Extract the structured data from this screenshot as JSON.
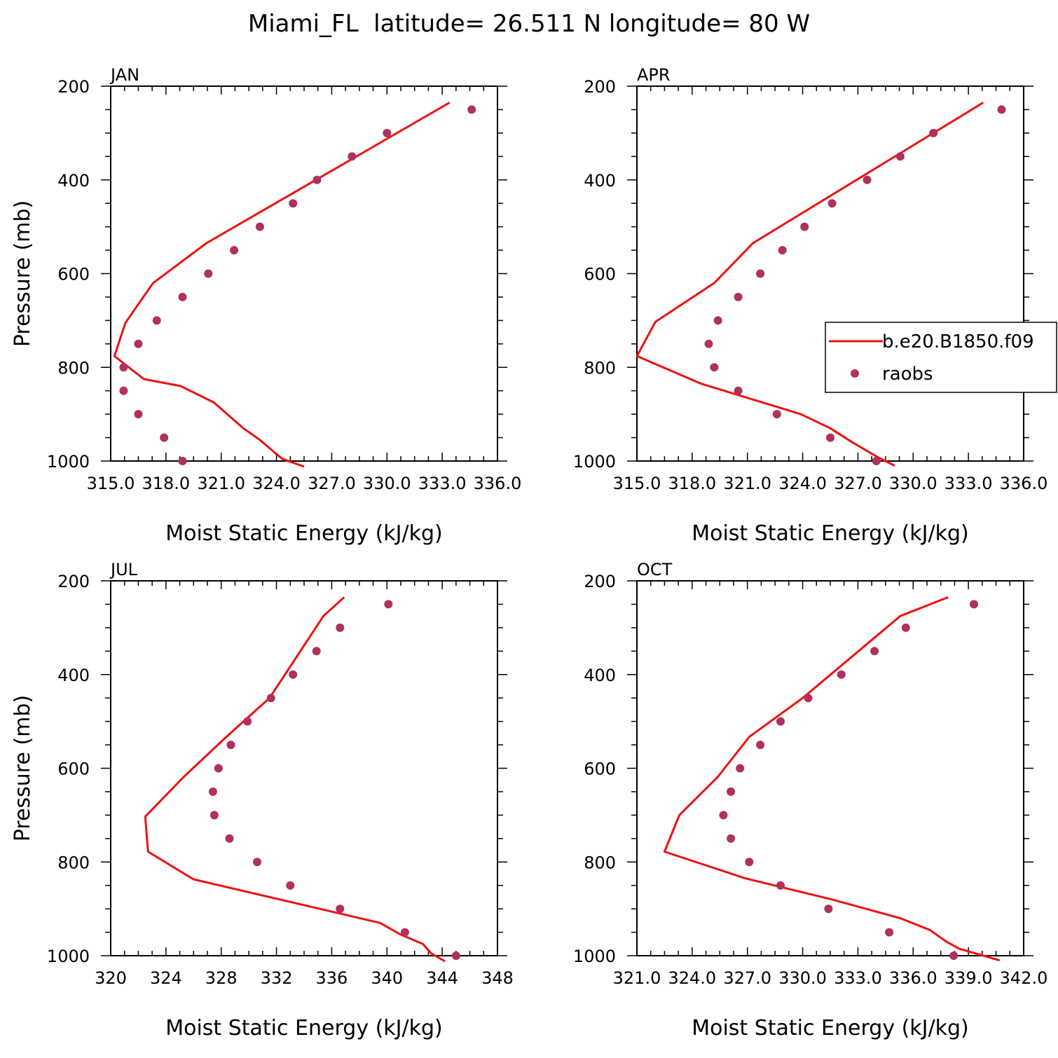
{
  "figure": {
    "title": "Miami_FL  latitude= 26.511 N longitude= 80 W"
  },
  "legend": {
    "model_label": "b.e20.B1850.f09",
    "obs_label": "raobs",
    "model_color": "#ee1111",
    "obs_color": "#b03060"
  },
  "chart_data": [
    {
      "type": "line",
      "panel": "JAN",
      "xlabel": "Moist Static Energy (kJ/kg)",
      "ylabel": "Pressure (mb)",
      "xlim": [
        315.0,
        336.0
      ],
      "ylim": [
        1000,
        200
      ],
      "xticks": [
        315.0,
        318.0,
        321.0,
        324.0,
        327.0,
        330.0,
        333.0,
        336.0
      ],
      "xtick_labels": [
        "315.0",
        "318.0",
        "321.0",
        "324.0",
        "327.0",
        "330.0",
        "333.0",
        "336.0"
      ],
      "yticks": [
        200,
        400,
        600,
        800,
        1000
      ],
      "ytick_labels": [
        "200",
        "400",
        "600",
        "800",
        "1000"
      ],
      "series": [
        {
          "name": "b.e20.B1850.f09",
          "style": "line",
          "x": [
            325.5,
            324.3,
            323.1,
            322.2,
            320.6,
            318.8,
            316.8,
            315.2,
            315.8,
            317.3,
            320.2,
            333.4
          ],
          "y": [
            1012,
            995,
            955,
            930,
            875,
            840,
            825,
            776,
            705,
            620,
            535,
            235
          ]
        },
        {
          "name": "raobs",
          "style": "markers",
          "x": [
            318.9,
            317.9,
            316.5,
            315.7,
            315.7,
            316.5,
            317.5,
            318.9,
            320.3,
            321.7,
            323.1,
            324.9,
            326.2,
            328.1,
            330.0,
            334.6
          ],
          "y": [
            1000,
            950,
            900,
            850,
            800,
            750,
            700,
            650,
            600,
            550,
            500,
            450,
            400,
            350,
            300,
            250
          ]
        }
      ]
    },
    {
      "type": "line",
      "panel": "APR",
      "xlabel": "Moist Static Energy (kJ/kg)",
      "ylabel": "Pressure (mb)",
      "xlim": [
        315.0,
        336.0
      ],
      "ylim": [
        1000,
        200
      ],
      "xticks": [
        315.0,
        318.0,
        321.0,
        324.0,
        327.0,
        330.0,
        333.0,
        336.0
      ],
      "xtick_labels": [
        "315.0",
        "318.0",
        "321.0",
        "324.0",
        "327.0",
        "330.0",
        "333.0",
        "336.0"
      ],
      "yticks": [
        200,
        400,
        600,
        800,
        1000
      ],
      "ytick_labels": [
        "200",
        "400",
        "600",
        "800",
        "1000"
      ],
      "series": [
        {
          "name": "b.e20.B1850.f09",
          "style": "line",
          "x": [
            329.0,
            328.0,
            326.7,
            325.5,
            323.9,
            318.5,
            315.0,
            316.0,
            319.2,
            321.3,
            333.8
          ],
          "y": [
            1010,
            990,
            960,
            930,
            900,
            835,
            776,
            703,
            620,
            535,
            235
          ]
        },
        {
          "name": "raobs",
          "style": "markers",
          "x": [
            328.0,
            325.5,
            322.6,
            320.5,
            319.2,
            318.9,
            319.4,
            320.5,
            321.7,
            322.9,
            324.1,
            325.6,
            327.5,
            329.3,
            331.1,
            334.8
          ],
          "y": [
            1000,
            950,
            900,
            850,
            800,
            750,
            700,
            650,
            600,
            550,
            500,
            450,
            400,
            350,
            300,
            250
          ]
        }
      ]
    },
    {
      "type": "line",
      "panel": "JUL",
      "xlabel": "Moist Static Energy (kJ/kg)",
      "ylabel": "Pressure (mb)",
      "xlim": [
        320,
        348
      ],
      "ylim": [
        1000,
        200
      ],
      "xticks": [
        320,
        324,
        328,
        332,
        336,
        340,
        344,
        348
      ],
      "xtick_labels": [
        "320",
        "324",
        "328",
        "332",
        "336",
        "340",
        "344",
        "348"
      ],
      "yticks": [
        200,
        400,
        600,
        800,
        1000
      ],
      "ytick_labels": [
        "200",
        "400",
        "600",
        "800",
        "1000"
      ],
      "series": [
        {
          "name": "b.e20.B1850.f09",
          "style": "line",
          "x": [
            344.2,
            343.2,
            342.6,
            341.0,
            339.5,
            326.0,
            322.7,
            322.5,
            325.3,
            328.3,
            331.5,
            335.4,
            336.9
          ],
          "y": [
            1012,
            995,
            975,
            955,
            930,
            837,
            778,
            703,
            618,
            535,
            450,
            275,
            235
          ]
        },
        {
          "name": "raobs",
          "style": "markers",
          "x": [
            345.0,
            341.3,
            336.6,
            333.0,
            330.6,
            328.6,
            327.5,
            327.4,
            327.8,
            328.7,
            329.9,
            331.6,
            333.2,
            334.9,
            336.6,
            340.1
          ],
          "y": [
            1000,
            950,
            900,
            850,
            800,
            750,
            700,
            650,
            600,
            550,
            500,
            450,
            400,
            350,
            300,
            250
          ]
        }
      ]
    },
    {
      "type": "line",
      "panel": "OCT",
      "xlabel": "Moist Static Energy (kJ/kg)",
      "ylabel": "Pressure (mb)",
      "xlim": [
        321.0,
        342.0
      ],
      "ylim": [
        1000,
        200
      ],
      "xticks": [
        321.0,
        324.0,
        327.0,
        330.0,
        333.0,
        336.0,
        339.0,
        342.0
      ],
      "xtick_labels": [
        "321.0",
        "324.0",
        "327.0",
        "330.0",
        "333.0",
        "336.0",
        "339.0",
        "342.0"
      ],
      "yticks": [
        200,
        400,
        600,
        800,
        1000
      ],
      "ytick_labels": [
        "200",
        "400",
        "600",
        "800",
        "1000"
      ],
      "series": [
        {
          "name": "b.e20.B1850.f09",
          "style": "line",
          "x": [
            340.7,
            338.5,
            337.8,
            336.9,
            335.3,
            331.6,
            326.9,
            322.5,
            323.3,
            325.4,
            327.1,
            330.0,
            335.3,
            337.9
          ],
          "y": [
            1010,
            985,
            970,
            945,
            920,
            880,
            835,
            778,
            700,
            618,
            533,
            450,
            275,
            235
          ]
        },
        {
          "name": "raobs",
          "style": "markers",
          "x": [
            338.2,
            334.7,
            331.4,
            328.8,
            327.1,
            326.1,
            325.7,
            326.1,
            326.6,
            327.7,
            328.8,
            330.3,
            332.1,
            333.9,
            335.6,
            339.3
          ],
          "y": [
            1000,
            950,
            900,
            850,
            800,
            750,
            700,
            650,
            600,
            550,
            500,
            450,
            400,
            350,
            300,
            250
          ]
        }
      ]
    }
  ]
}
